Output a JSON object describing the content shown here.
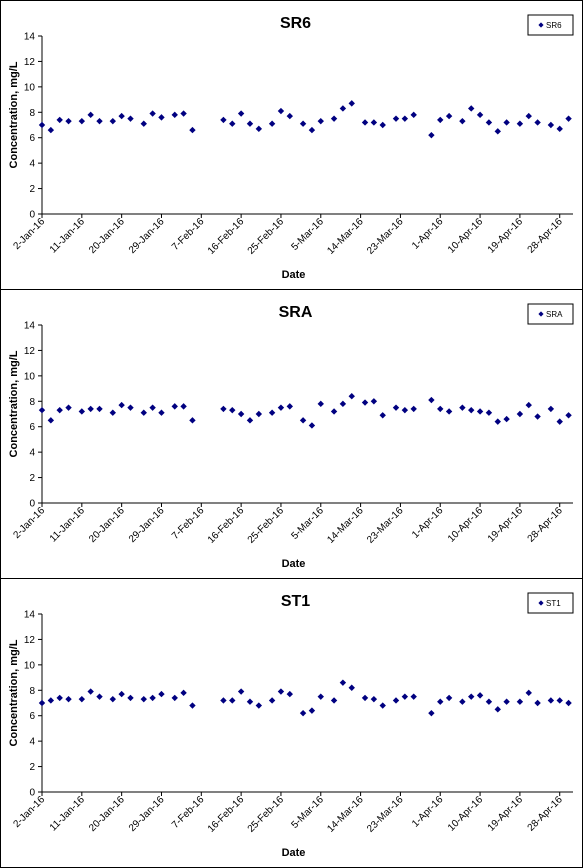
{
  "chart_data": [
    {
      "type": "scatter",
      "title": "SR6",
      "xlabel": "Date",
      "ylabel": "Concentration, mg/L",
      "ylim": [
        0,
        14
      ],
      "yticks": [
        "0",
        "2",
        "4",
        "6",
        "8",
        "10",
        "12",
        "14"
      ],
      "xticks": [
        "2-Jan-16",
        "11-Jan-16",
        "20-Jan-16",
        "29-Jan-16",
        "7-Feb-16",
        "16-Feb-16",
        "25-Feb-16",
        "5-Mar-16",
        "14-Mar-16",
        "23-Mar-16",
        "1-Apr-16",
        "10-Apr-16",
        "19-Apr-16",
        "28-Apr-16"
      ],
      "xlim": [
        "2016-01-02",
        "2016-05-01"
      ],
      "grid": false,
      "legend_position": "top-right",
      "color": "#000080",
      "series": [
        {
          "name": "SR6",
          "points": [
            [
              "2016-01-02",
              7.0
            ],
            [
              "2016-01-04",
              6.6
            ],
            [
              "2016-01-06",
              7.4
            ],
            [
              "2016-01-08",
              7.3
            ],
            [
              "2016-01-11",
              7.3
            ],
            [
              "2016-01-13",
              7.8
            ],
            [
              "2016-01-15",
              7.3
            ],
            [
              "2016-01-18",
              7.3
            ],
            [
              "2016-01-20",
              7.7
            ],
            [
              "2016-01-22",
              7.5
            ],
            [
              "2016-01-25",
              7.1
            ],
            [
              "2016-01-27",
              7.9
            ],
            [
              "2016-01-29",
              7.6
            ],
            [
              "2016-02-01",
              7.8
            ],
            [
              "2016-02-03",
              7.9
            ],
            [
              "2016-02-05",
              6.6
            ],
            [
              "2016-02-12",
              7.4
            ],
            [
              "2016-02-14",
              7.1
            ],
            [
              "2016-02-16",
              7.9
            ],
            [
              "2016-02-18",
              7.1
            ],
            [
              "2016-02-20",
              6.7
            ],
            [
              "2016-02-23",
              7.1
            ],
            [
              "2016-02-25",
              8.1
            ],
            [
              "2016-02-27",
              7.7
            ],
            [
              "2016-03-01",
              7.1
            ],
            [
              "2016-03-03",
              6.6
            ],
            [
              "2016-03-05",
              7.3
            ],
            [
              "2016-03-08",
              7.5
            ],
            [
              "2016-03-10",
              8.3
            ],
            [
              "2016-03-12",
              8.7
            ],
            [
              "2016-03-15",
              7.2
            ],
            [
              "2016-03-17",
              7.2
            ],
            [
              "2016-03-19",
              7.0
            ],
            [
              "2016-03-22",
              7.5
            ],
            [
              "2016-03-24",
              7.5
            ],
            [
              "2016-03-26",
              7.8
            ],
            [
              "2016-03-30",
              6.2
            ],
            [
              "2016-04-01",
              7.4
            ],
            [
              "2016-04-03",
              7.7
            ],
            [
              "2016-04-06",
              7.3
            ],
            [
              "2016-04-08",
              8.3
            ],
            [
              "2016-04-10",
              7.8
            ],
            [
              "2016-04-12",
              7.2
            ],
            [
              "2016-04-14",
              6.5
            ],
            [
              "2016-04-16",
              7.2
            ],
            [
              "2016-04-19",
              7.1
            ],
            [
              "2016-04-21",
              7.7
            ],
            [
              "2016-04-23",
              7.2
            ],
            [
              "2016-04-26",
              7.0
            ],
            [
              "2016-04-28",
              6.7
            ],
            [
              "2016-04-30",
              7.5
            ]
          ]
        }
      ]
    },
    {
      "type": "scatter",
      "title": "SRA",
      "xlabel": "Date",
      "ylabel": "Concentration, mg/L",
      "ylim": [
        0,
        14
      ],
      "yticks": [
        "0",
        "2",
        "4",
        "6",
        "8",
        "10",
        "12",
        "14"
      ],
      "xticks": [
        "2-Jan-16",
        "11-Jan-16",
        "20-Jan-16",
        "29-Jan-16",
        "7-Feb-16",
        "16-Feb-16",
        "25-Feb-16",
        "5-Mar-16",
        "14-Mar-16",
        "23-Mar-16",
        "1-Apr-16",
        "10-Apr-16",
        "19-Apr-16",
        "28-Apr-16"
      ],
      "xlim": [
        "2016-01-02",
        "2016-05-01"
      ],
      "grid": false,
      "legend_position": "top-right",
      "color": "#000080",
      "series": [
        {
          "name": "SRA",
          "points": [
            [
              "2016-01-02",
              7.3
            ],
            [
              "2016-01-04",
              6.5
            ],
            [
              "2016-01-06",
              7.3
            ],
            [
              "2016-01-08",
              7.5
            ],
            [
              "2016-01-11",
              7.2
            ],
            [
              "2016-01-13",
              7.4
            ],
            [
              "2016-01-15",
              7.4
            ],
            [
              "2016-01-18",
              7.1
            ],
            [
              "2016-01-20",
              7.7
            ],
            [
              "2016-01-22",
              7.5
            ],
            [
              "2016-01-25",
              7.1
            ],
            [
              "2016-01-27",
              7.5
            ],
            [
              "2016-01-29",
              7.1
            ],
            [
              "2016-02-01",
              7.6
            ],
            [
              "2016-02-03",
              7.6
            ],
            [
              "2016-02-05",
              6.5
            ],
            [
              "2016-02-12",
              7.4
            ],
            [
              "2016-02-14",
              7.3
            ],
            [
              "2016-02-16",
              7.0
            ],
            [
              "2016-02-18",
              6.5
            ],
            [
              "2016-02-20",
              7.0
            ],
            [
              "2016-02-23",
              7.1
            ],
            [
              "2016-02-25",
              7.5
            ],
            [
              "2016-02-27",
              7.6
            ],
            [
              "2016-03-01",
              6.5
            ],
            [
              "2016-03-03",
              6.1
            ],
            [
              "2016-03-05",
              7.8
            ],
            [
              "2016-03-08",
              7.2
            ],
            [
              "2016-03-10",
              7.8
            ],
            [
              "2016-03-12",
              8.4
            ],
            [
              "2016-03-15",
              7.9
            ],
            [
              "2016-03-17",
              8.0
            ],
            [
              "2016-03-19",
              6.9
            ],
            [
              "2016-03-22",
              7.5
            ],
            [
              "2016-03-24",
              7.3
            ],
            [
              "2016-03-26",
              7.4
            ],
            [
              "2016-03-30",
              8.1
            ],
            [
              "2016-04-01",
              7.4
            ],
            [
              "2016-04-03",
              7.2
            ],
            [
              "2016-04-06",
              7.5
            ],
            [
              "2016-04-08",
              7.3
            ],
            [
              "2016-04-10",
              7.2
            ],
            [
              "2016-04-12",
              7.1
            ],
            [
              "2016-04-14",
              6.4
            ],
            [
              "2016-04-16",
              6.6
            ],
            [
              "2016-04-19",
              7.0
            ],
            [
              "2016-04-21",
              7.7
            ],
            [
              "2016-04-23",
              6.8
            ],
            [
              "2016-04-26",
              7.4
            ],
            [
              "2016-04-28",
              6.4
            ],
            [
              "2016-04-30",
              6.9
            ]
          ]
        }
      ]
    },
    {
      "type": "scatter",
      "title": "ST1",
      "xlabel": "Date",
      "ylabel": "Concentration, mg/L",
      "ylim": [
        0,
        14
      ],
      "yticks": [
        "0",
        "2",
        "4",
        "6",
        "8",
        "10",
        "12",
        "14"
      ],
      "xticks": [
        "2-Jan-16",
        "11-Jan-16",
        "20-Jan-16",
        "29-Jan-16",
        "7-Feb-16",
        "16-Feb-16",
        "25-Feb-16",
        "5-Mar-16",
        "14-Mar-16",
        "23-Mar-16",
        "1-Apr-16",
        "10-Apr-16",
        "19-Apr-16",
        "28-Apr-16"
      ],
      "xlim": [
        "2016-01-02",
        "2016-05-01"
      ],
      "grid": false,
      "legend_position": "top-right",
      "color": "#000080",
      "series": [
        {
          "name": "ST1",
          "points": [
            [
              "2016-01-02",
              7.0
            ],
            [
              "2016-01-04",
              7.2
            ],
            [
              "2016-01-06",
              7.4
            ],
            [
              "2016-01-08",
              7.3
            ],
            [
              "2016-01-11",
              7.3
            ],
            [
              "2016-01-13",
              7.9
            ],
            [
              "2016-01-15",
              7.5
            ],
            [
              "2016-01-18",
              7.3
            ],
            [
              "2016-01-20",
              7.7
            ],
            [
              "2016-01-22",
              7.4
            ],
            [
              "2016-01-25",
              7.3
            ],
            [
              "2016-01-27",
              7.4
            ],
            [
              "2016-01-29",
              7.7
            ],
            [
              "2016-02-01",
              7.4
            ],
            [
              "2016-02-03",
              7.8
            ],
            [
              "2016-02-05",
              6.8
            ],
            [
              "2016-02-12",
              7.2
            ],
            [
              "2016-02-14",
              7.2
            ],
            [
              "2016-02-16",
              7.9
            ],
            [
              "2016-02-18",
              7.1
            ],
            [
              "2016-02-20",
              6.8
            ],
            [
              "2016-02-23",
              7.2
            ],
            [
              "2016-02-25",
              7.9
            ],
            [
              "2016-02-27",
              7.7
            ],
            [
              "2016-03-01",
              6.2
            ],
            [
              "2016-03-03",
              6.4
            ],
            [
              "2016-03-05",
              7.5
            ],
            [
              "2016-03-08",
              7.2
            ],
            [
              "2016-03-10",
              8.6
            ],
            [
              "2016-03-12",
              8.2
            ],
            [
              "2016-03-15",
              7.4
            ],
            [
              "2016-03-17",
              7.3
            ],
            [
              "2016-03-19",
              6.8
            ],
            [
              "2016-03-22",
              7.2
            ],
            [
              "2016-03-24",
              7.5
            ],
            [
              "2016-03-26",
              7.5
            ],
            [
              "2016-03-30",
              6.2
            ],
            [
              "2016-04-01",
              7.1
            ],
            [
              "2016-04-03",
              7.4
            ],
            [
              "2016-04-06",
              7.1
            ],
            [
              "2016-04-08",
              7.5
            ],
            [
              "2016-04-10",
              7.6
            ],
            [
              "2016-04-12",
              7.1
            ],
            [
              "2016-04-14",
              6.5
            ],
            [
              "2016-04-16",
              7.1
            ],
            [
              "2016-04-19",
              7.1
            ],
            [
              "2016-04-21",
              7.8
            ],
            [
              "2016-04-23",
              7.0
            ],
            [
              "2016-04-26",
              7.2
            ],
            [
              "2016-04-28",
              7.2
            ],
            [
              "2016-04-30",
              7.0
            ]
          ]
        }
      ]
    }
  ]
}
